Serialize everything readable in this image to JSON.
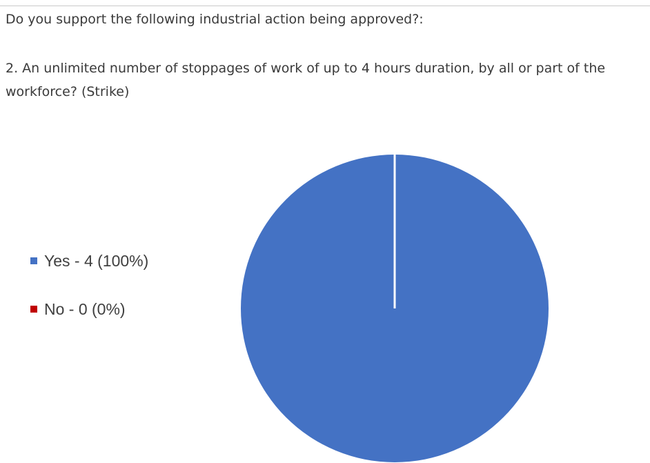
{
  "header": {
    "question": "Do you support the following industrial action being approved?:"
  },
  "question_detail": "2. An unlimited number of stoppages of work of up to 4 hours duration, by all or part of the workforce? (Strike)",
  "legend": {
    "items": [
      {
        "label": "Yes - 4 (100%)",
        "color": "#4472c4"
      },
      {
        "label": "No - 0 (0%)",
        "color": "#c00000"
      }
    ]
  },
  "chart_data": {
    "type": "pie",
    "categories": [
      "Yes",
      "No"
    ],
    "values": [
      4,
      0
    ],
    "percentages": [
      100,
      0
    ],
    "colors": [
      "#4472c4",
      "#c00000"
    ],
    "legend_position": "left"
  }
}
